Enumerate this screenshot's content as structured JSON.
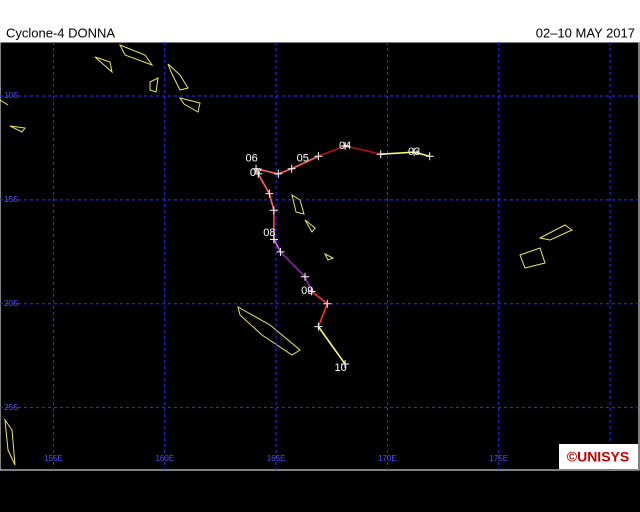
{
  "header": {
    "title": "Cyclone-4 DONNA",
    "dates": "02–10 MAY 2017"
  },
  "map": {
    "lon_range": [
      152.6,
      181.3
    ],
    "lat_range_south": [
      7.4,
      28.0
    ],
    "lat_lines": [
      {
        "value": 10,
        "label": "10S"
      },
      {
        "value": 15,
        "label": "15S"
      },
      {
        "value": 20,
        "label": "20S"
      },
      {
        "value": 25,
        "label": "25S"
      }
    ],
    "lon_lines": [
      {
        "value": 155,
        "label": "155E"
      },
      {
        "value": 160,
        "label": "160E"
      },
      {
        "value": 165,
        "label": "165E"
      },
      {
        "value": 170,
        "label": "170E"
      },
      {
        "value": 175,
        "label": "175E"
      },
      {
        "value": 180,
        "label": ""
      }
    ],
    "track": {
      "lon": [
        171.9,
        171.2,
        169.7,
        168.1,
        166.9,
        165.7,
        165.1,
        164.1,
        164.2,
        164.7,
        164.9,
        164.9,
        165.2,
        166.3,
        166.6,
        167.3,
        166.9,
        168.1
      ],
      "lat": [
        12.9,
        12.7,
        12.8,
        12.4,
        12.9,
        13.5,
        13.75,
        13.5,
        13.75,
        14.7,
        15.5,
        16.9,
        17.5,
        18.7,
        19.4,
        20.0,
        21.1,
        22.9
      ],
      "segment_colors": [
        "#ffff60",
        "#ffff60",
        "#b01010",
        "#b01010",
        "#ff6060",
        "#ff6060",
        "#ff6060",
        "#ff6060",
        "#ff6060",
        "#ff6060",
        "#ff4040",
        "#e060e0",
        "#9020b0",
        "#9020b0",
        "#ff3030",
        "#ff3030",
        "#ffff60"
      ]
    },
    "days": [
      {
        "label": "03",
        "lon": 171.2,
        "lat": 12.7
      },
      {
        "label": "04",
        "lon": 168.1,
        "lat": 12.4
      },
      {
        "label": "05",
        "lon": 166.2,
        "lat": 13.0
      },
      {
        "label": "06",
        "lon": 163.9,
        "lat": 13.0
      },
      {
        "label": "07",
        "lon": 164.1,
        "lat": 13.7
      },
      {
        "label": "08",
        "lon": 164.7,
        "lat": 16.6
      },
      {
        "label": "09",
        "lon": 166.4,
        "lat": 19.4
      },
      {
        "label": "10",
        "lon": 167.9,
        "lat": 23.1
      }
    ]
  },
  "logo": "©UNISYS"
}
